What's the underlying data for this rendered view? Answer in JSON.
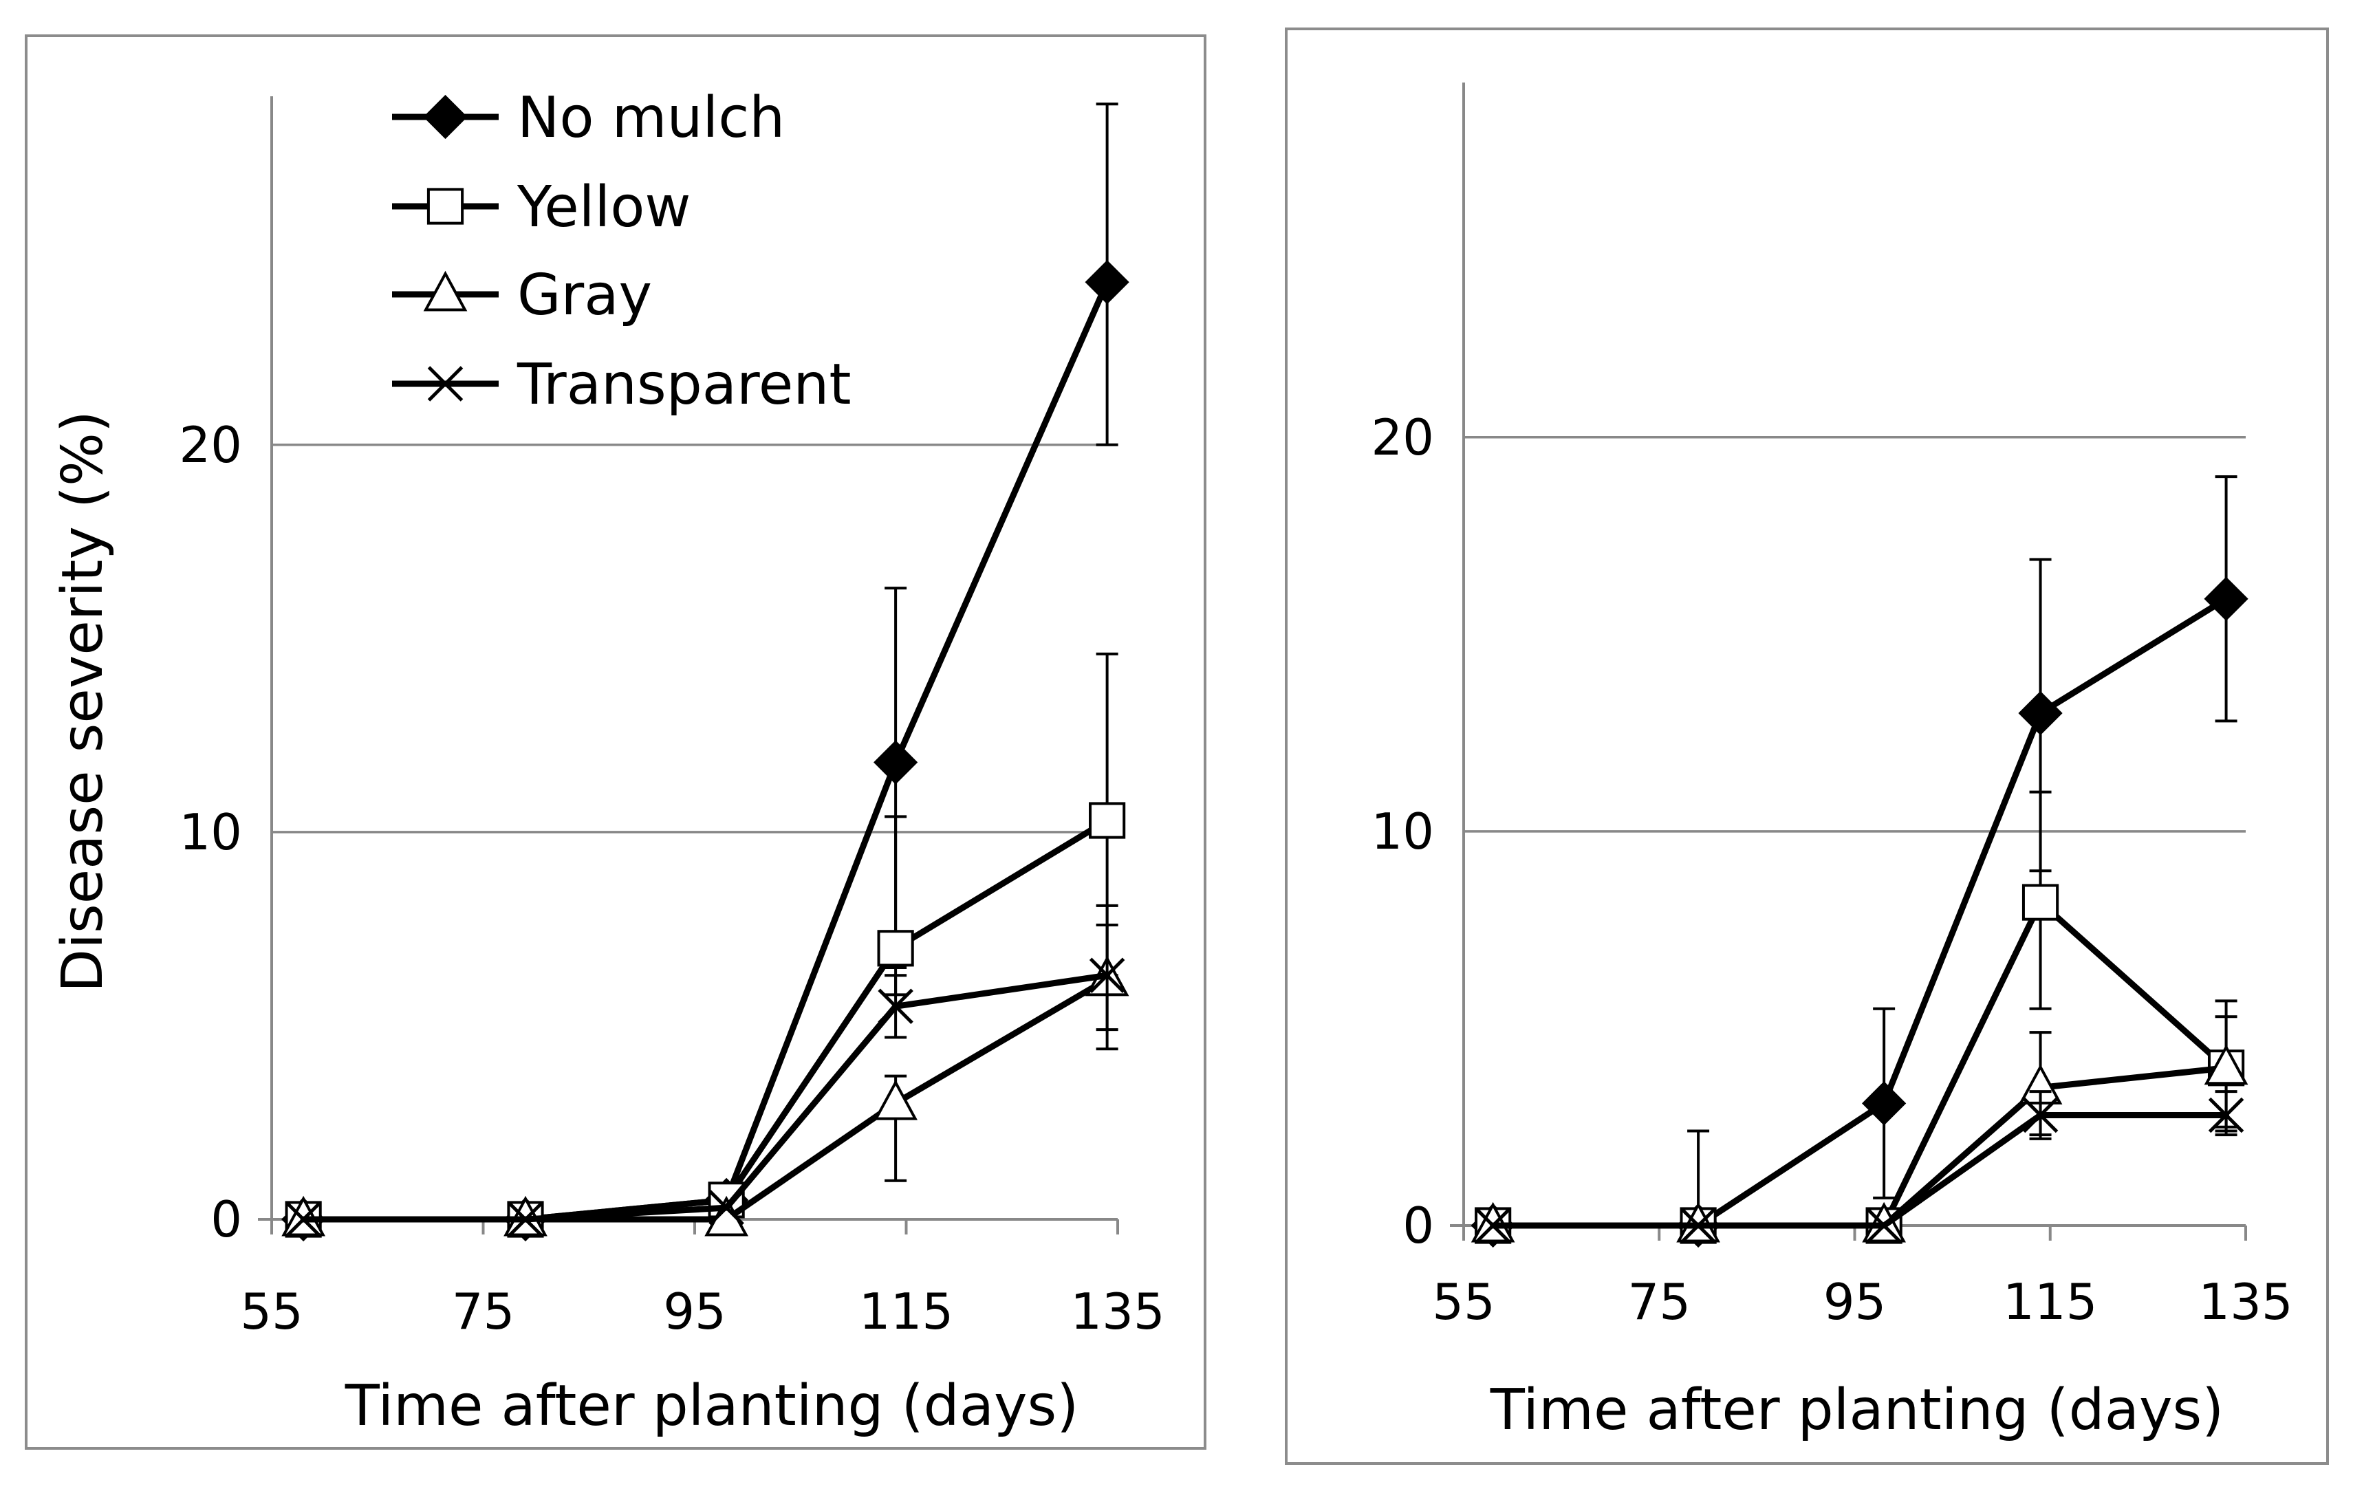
{
  "chart_data": [
    {
      "type": "line",
      "panel": "left",
      "xlabel": "Time after planting (days)",
      "ylabel": "Disease severity (%)",
      "xlim": [
        55,
        135
      ],
      "ylim": [
        0,
        29
      ],
      "xticks": [
        "55",
        "75",
        "95",
        "115",
        "135"
      ],
      "yticks": [
        "0",
        "10",
        "20"
      ],
      "x": [
        58,
        79,
        98,
        114,
        134
      ],
      "series": [
        {
          "name": "No mulch",
          "marker": "diamond",
          "values": [
            0,
            0,
            0.5,
            11.8,
            24.2
          ],
          "error_low": [
            0,
            0,
            0,
            6.5,
            20.0
          ],
          "error_high": [
            0,
            0,
            0,
            16.3,
            28.8
          ]
        },
        {
          "name": "Yellow",
          "marker": "square",
          "values": [
            0,
            0,
            0.5,
            7.0,
            10.3
          ],
          "error_low": [
            0,
            0,
            0,
            5.8,
            6.3
          ],
          "error_high": [
            0,
            0,
            0,
            10.4,
            14.6
          ]
        },
        {
          "name": "Gray",
          "marker": "triangle",
          "values": [
            0,
            0,
            0,
            3.0,
            6.2
          ],
          "error_low": [
            0,
            0,
            0,
            1.0,
            4.4
          ],
          "error_high": [
            0,
            0,
            0,
            3.7,
            8.1
          ]
        },
        {
          "name": "Transparent",
          "marker": "cross",
          "values": [
            0,
            0,
            0.3,
            5.5,
            6.3
          ],
          "error_low": [
            0,
            0,
            0,
            4.7,
            4.9
          ],
          "error_high": [
            0,
            0,
            0,
            6.3,
            7.6
          ]
        }
      ],
      "legend": {
        "position": "top-left",
        "entries": [
          "No mulch",
          "Yellow",
          "Gray",
          "Transparent"
        ]
      },
      "grid": true
    },
    {
      "type": "line",
      "panel": "right",
      "xlabel": "Time after planting (days)",
      "ylabel": "",
      "xlim": [
        55,
        135
      ],
      "ylim": [
        0,
        29
      ],
      "xticks": [
        "55",
        "75",
        "95",
        "115",
        "135"
      ],
      "yticks": [
        "0",
        "10",
        "20"
      ],
      "x": [
        58,
        79,
        98,
        114,
        133
      ],
      "series": [
        {
          "name": "No mulch",
          "marker": "diamond",
          "values": [
            0,
            0,
            3.1,
            13.0,
            15.9
          ],
          "error_low": [
            0,
            0,
            0.7,
            9.0,
            12.8
          ],
          "error_high": [
            0,
            2.4,
            5.5,
            16.9,
            19.0
          ]
        },
        {
          "name": "Yellow",
          "marker": "square",
          "values": [
            0,
            0,
            0,
            8.2,
            4.0
          ],
          "error_low": [
            0,
            0,
            0,
            5.5,
            2.4
          ],
          "error_high": [
            0,
            0,
            0,
            11.0,
            5.7
          ]
        },
        {
          "name": "Gray",
          "marker": "triangle",
          "values": [
            0,
            0,
            0,
            3.5,
            4.0
          ],
          "error_low": [
            0,
            0,
            0,
            2.3,
            2.5
          ],
          "error_high": [
            0,
            0,
            0,
            4.9,
            5.3
          ]
        },
        {
          "name": "Transparent",
          "marker": "cross",
          "values": [
            0,
            0,
            0,
            2.8,
            2.8
          ],
          "error_low": [
            0,
            0,
            0,
            2.2,
            2.3
          ],
          "error_high": [
            0,
            0,
            0,
            3.4,
            3.4
          ]
        }
      ],
      "grid": true
    }
  ]
}
